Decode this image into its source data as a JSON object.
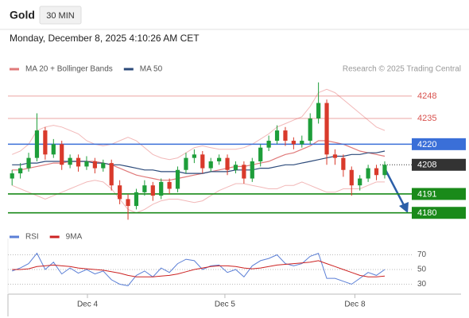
{
  "header": {
    "symbol": "Gold",
    "timeframe": "30 MIN",
    "timestamp": "Monday, December 8, 2025 4:10:26 AM CET"
  },
  "chart_data": [
    {
      "type": "candlestick",
      "note": "Research © 2025 Trading Central",
      "xlim": [
        -0.5,
        47.5
      ],
      "xticks": [
        {
          "value": 9.1,
          "label": "Dec 4"
        },
        {
          "value": 25.7,
          "label": "Dec 5"
        },
        {
          "value": 41.4,
          "label": "Dec 8"
        }
      ],
      "ylim": [
        4172,
        4260
      ],
      "up_color": "#1e9e3a",
      "down_color": "#d93a2b",
      "open": [
        4200,
        4203,
        4206,
        4212,
        4228,
        4214,
        4220,
        4208,
        4212,
        4207,
        4210,
        4206,
        4209,
        4196,
        4188,
        4184,
        4192,
        4196,
        4190,
        4198,
        4194,
        4205,
        4212,
        4214,
        4206,
        4210,
        4212,
        4205,
        4208,
        4200,
        4210,
        4218,
        4222,
        4228,
        4222,
        4220,
        4222,
        4235,
        4244,
        4214,
        4212,
        4205,
        4196,
        4200,
        4206,
        4202
      ],
      "high": [
        4205,
        4209,
        4215,
        4238,
        4230,
        4223,
        4222,
        4214,
        4214,
        4213,
        4212,
        4211,
        4211,
        4199,
        4191,
        4194,
        4199,
        4198,
        4200,
        4200,
        4207,
        4215,
        4217,
        4216,
        4212,
        4214,
        4214,
        4210,
        4210,
        4212,
        4220,
        4225,
        4231,
        4230,
        4224,
        4225,
        4238,
        4256,
        4246,
        4217,
        4214,
        4207,
        4202,
        4208,
        4208,
        4210
      ],
      "low": [
        4196,
        4200,
        4204,
        4210,
        4211,
        4212,
        4205,
        4206,
        4204,
        4205,
        4203,
        4204,
        4193,
        4185,
        4176,
        4182,
        4190,
        4187,
        4188,
        4191,
        4192,
        4203,
        4209,
        4203,
        4204,
        4208,
        4202,
        4203,
        4197,
        4198,
        4207,
        4216,
        4220,
        4219,
        4217,
        4218,
        4220,
        4232,
        4208,
        4208,
        4201,
        4190,
        4193,
        4198,
        4199,
        4200
      ],
      "close": [
        4203,
        4206,
        4212,
        4228,
        4214,
        4220,
        4208,
        4212,
        4207,
        4210,
        4206,
        4209,
        4196,
        4188,
        4184,
        4192,
        4196,
        4190,
        4198,
        4194,
        4205,
        4212,
        4214,
        4206,
        4210,
        4212,
        4205,
        4208,
        4200,
        4210,
        4218,
        4222,
        4228,
        4222,
        4220,
        4222,
        4235,
        4244,
        4214,
        4212,
        4205,
        4196,
        4200,
        4206,
        4202,
        4208
      ],
      "series": [
        {
          "name": "MA 20 + Bollinger Bands",
          "color": "#e07a7a",
          "band_color": "#f2b8b8",
          "values": [
            4205,
            4205,
            4206,
            4207,
            4208,
            4209,
            4209,
            4210,
            4210,
            4210,
            4210,
            4209,
            4208,
            4206,
            4204,
            4202,
            4201,
            4200,
            4199,
            4199,
            4200,
            4201,
            4202,
            4203,
            4204,
            4205,
            4206,
            4207,
            4207,
            4208,
            4209,
            4210,
            4212,
            4214,
            4215,
            4217,
            4219,
            4222,
            4222,
            4221,
            4220,
            4218,
            4216,
            4215,
            4214,
            4213
          ],
          "upper": [
            4214,
            4216,
            4220,
            4228,
            4230,
            4231,
            4230,
            4228,
            4226,
            4222,
            4220,
            4219,
            4220,
            4222,
            4224,
            4222,
            4218,
            4214,
            4212,
            4211,
            4212,
            4215,
            4218,
            4219,
            4218,
            4217,
            4217,
            4217,
            4218,
            4220,
            4223,
            4226,
            4230,
            4232,
            4234,
            4236,
            4242,
            4250,
            4252,
            4250,
            4246,
            4242,
            4238,
            4234,
            4230,
            4228
          ],
          "lower": [
            4196,
            4194,
            4192,
            4190,
            4188,
            4190,
            4192,
            4194,
            4196,
            4198,
            4199,
            4198,
            4194,
            4188,
            4182,
            4180,
            4182,
            4185,
            4187,
            4188,
            4188,
            4187,
            4186,
            4187,
            4190,
            4193,
            4195,
            4197,
            4197,
            4196,
            4195,
            4194,
            4194,
            4196,
            4196,
            4198,
            4196,
            4194,
            4192,
            4192,
            4194,
            4194,
            4194,
            4196,
            4198,
            4198
          ]
        },
        {
          "name": "MA 50",
          "color": "#2c4a7a",
          "values": [
            4208,
            4208,
            4209,
            4209,
            4210,
            4210,
            4210,
            4210,
            4210,
            4210,
            4209,
            4209,
            4208,
            4208,
            4207,
            4206,
            4205,
            4205,
            4204,
            4204,
            4204,
            4203,
            4203,
            4203,
            4204,
            4204,
            4204,
            4205,
            4205,
            4205,
            4206,
            4206,
            4207,
            4208,
            4208,
            4209,
            4210,
            4211,
            4212,
            4213,
            4213,
            4214,
            4214,
            4215,
            4215,
            4216
          ]
        }
      ],
      "levels": [
        {
          "value": 4248,
          "color": "#d9534f",
          "style": "text"
        },
        {
          "value": 4235,
          "color": "#d9534f",
          "style": "text"
        },
        {
          "value": 4220,
          "color": "#3a6fd8",
          "style": "box"
        },
        {
          "value": 4208,
          "color": "#333333",
          "style": "dotted-box"
        },
        {
          "value": 4191,
          "color": "#1a8a1a",
          "style": "box"
        },
        {
          "value": 4180,
          "color": "#1a8a1a",
          "style": "box"
        }
      ]
    },
    {
      "type": "line",
      "xlim": [
        -0.5,
        47.5
      ],
      "ylim": [
        10,
        90
      ],
      "yticks": [
        30,
        50,
        70
      ],
      "grid": true,
      "series": [
        {
          "name": "RSI",
          "color": "#5b7fd6",
          "values": [
            48,
            52,
            58,
            72,
            50,
            60,
            44,
            52,
            45,
            50,
            44,
            48,
            36,
            30,
            28,
            42,
            48,
            40,
            52,
            46,
            58,
            64,
            62,
            50,
            55,
            56,
            46,
            50,
            40,
            55,
            62,
            65,
            70,
            58,
            55,
            58,
            68,
            72,
            38,
            38,
            34,
            30,
            38,
            46,
            42,
            50
          ]
        },
        {
          "name": "9MA",
          "color": "#cc2222",
          "values": [
            50,
            50,
            51,
            54,
            55,
            56,
            55,
            54,
            52,
            51,
            50,
            49,
            47,
            45,
            42,
            40,
            40,
            40,
            41,
            42,
            44,
            47,
            50,
            52,
            54,
            55,
            55,
            54,
            52,
            51,
            52,
            54,
            56,
            57,
            58,
            59,
            60,
            62,
            58,
            54,
            50,
            46,
            42,
            40,
            40,
            41
          ]
        }
      ]
    }
  ]
}
